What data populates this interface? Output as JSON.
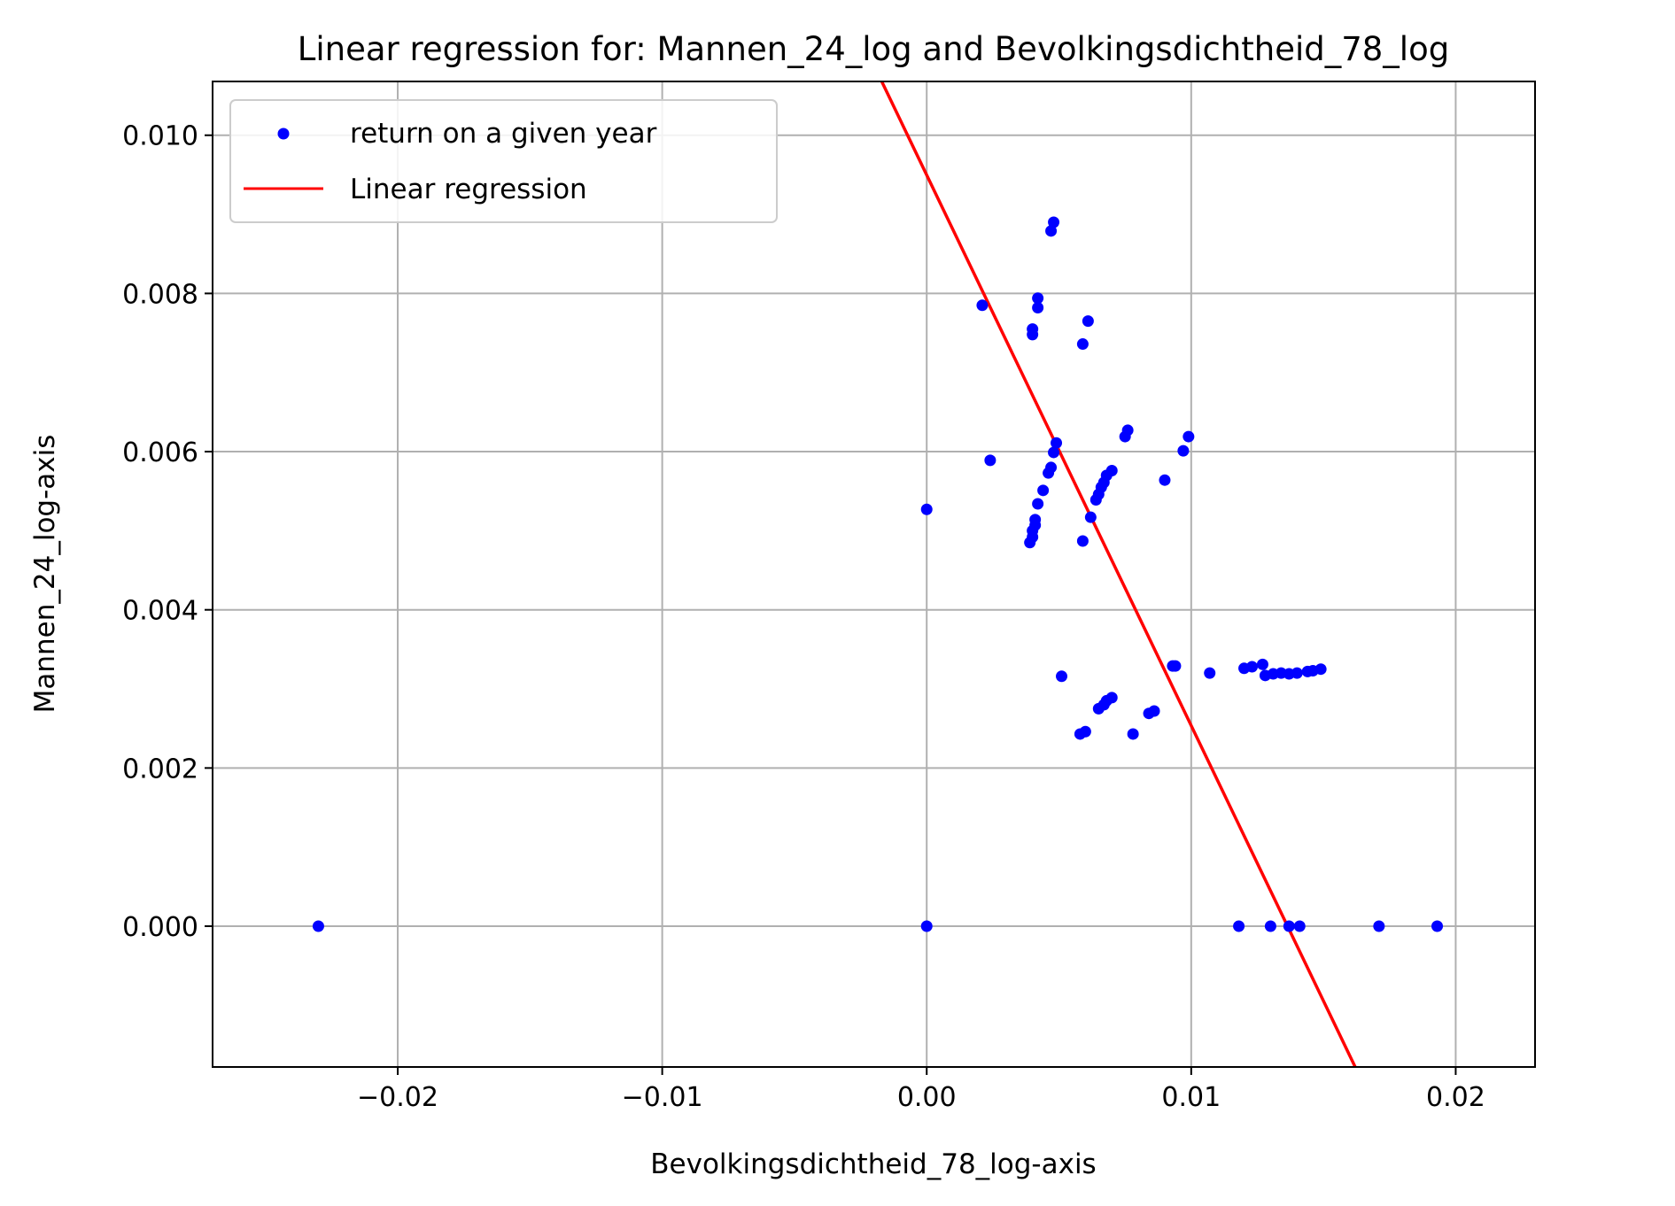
{
  "chart_data": {
    "type": "scatter",
    "title": "Linear regression for: Mannen_24_log and Bevolkingsdichtheid_78_log",
    "xlabel": "Bevolkingsdichtheid_78_log-axis",
    "ylabel": "Mannen_24_log-axis",
    "xlim": [
      -0.027,
      0.023
    ],
    "ylim": [
      -0.00178,
      0.01068
    ],
    "grid": true,
    "legend_position": "upper-left",
    "x_ticks": [
      {
        "value": -0.02,
        "label": "−0.02"
      },
      {
        "value": -0.01,
        "label": "−0.01"
      },
      {
        "value": 0.0,
        "label": "0.00"
      },
      {
        "value": 0.01,
        "label": "0.01"
      },
      {
        "value": 0.02,
        "label": "0.02"
      }
    ],
    "y_ticks": [
      {
        "value": 0.0,
        "label": "0.000"
      },
      {
        "value": 0.002,
        "label": "0.002"
      },
      {
        "value": 0.004,
        "label": "0.004"
      },
      {
        "value": 0.006,
        "label": "0.006"
      },
      {
        "value": 0.008,
        "label": "0.008"
      },
      {
        "value": 0.01,
        "label": "0.010"
      }
    ],
    "series": [
      {
        "name": "return on a given year",
        "kind": "scatter",
        "color": "#0000ff",
        "points": [
          [
            -0.023,
            0.0
          ],
          [
            0.0,
            0.0
          ],
          [
            0.0118,
            0.0
          ],
          [
            0.013,
            0.0
          ],
          [
            0.0137,
            0.0
          ],
          [
            0.0141,
            0.0
          ],
          [
            0.0171,
            0.0
          ],
          [
            0.0193,
            0.0
          ],
          [
            0.0,
            0.00527
          ],
          [
            0.0021,
            0.00785
          ],
          [
            0.0024,
            0.00589
          ],
          [
            0.0039,
            0.00485
          ],
          [
            0.004,
            0.00492
          ],
          [
            0.004,
            0.005
          ],
          [
            0.0041,
            0.00507
          ],
          [
            0.0041,
            0.00514
          ],
          [
            0.0042,
            0.00534
          ],
          [
            0.0044,
            0.00551
          ],
          [
            0.0046,
            0.00573
          ],
          [
            0.0047,
            0.0058
          ],
          [
            0.0048,
            0.00599
          ],
          [
            0.0049,
            0.00611
          ],
          [
            0.004,
            0.00748
          ],
          [
            0.004,
            0.00755
          ],
          [
            0.0042,
            0.00782
          ],
          [
            0.0042,
            0.00794
          ],
          [
            0.0047,
            0.00879
          ],
          [
            0.0048,
            0.0089
          ],
          [
            0.0059,
            0.00736
          ],
          [
            0.0061,
            0.00765
          ],
          [
            0.0062,
            0.00517
          ],
          [
            0.0059,
            0.00487
          ],
          [
            0.0064,
            0.00539
          ],
          [
            0.0065,
            0.00546
          ],
          [
            0.0066,
            0.00555
          ],
          [
            0.0067,
            0.00561
          ],
          [
            0.0068,
            0.0057
          ],
          [
            0.007,
            0.00576
          ],
          [
            0.0075,
            0.00619
          ],
          [
            0.0076,
            0.00627
          ],
          [
            0.009,
            0.00564
          ],
          [
            0.0097,
            0.00601
          ],
          [
            0.0099,
            0.00619
          ],
          [
            0.0051,
            0.00316
          ],
          [
            0.0058,
            0.00243
          ],
          [
            0.006,
            0.00246
          ],
          [
            0.0065,
            0.00275
          ],
          [
            0.0067,
            0.0028
          ],
          [
            0.0068,
            0.00285
          ],
          [
            0.007,
            0.00289
          ],
          [
            0.0078,
            0.00243
          ],
          [
            0.0084,
            0.00269
          ],
          [
            0.0086,
            0.00272
          ],
          [
            0.0093,
            0.00329
          ],
          [
            0.0094,
            0.00329
          ],
          [
            0.0107,
            0.0032
          ],
          [
            0.012,
            0.00326
          ],
          [
            0.0123,
            0.00328
          ],
          [
            0.0127,
            0.00331
          ],
          [
            0.0128,
            0.00317
          ],
          [
            0.0131,
            0.00319
          ],
          [
            0.0134,
            0.0032
          ],
          [
            0.0137,
            0.00319
          ],
          [
            0.014,
            0.0032
          ],
          [
            0.0144,
            0.00322
          ],
          [
            0.0146,
            0.00323
          ],
          [
            0.0149,
            0.00325
          ]
        ]
      },
      {
        "name": "Linear regression",
        "kind": "line",
        "color": "#ff0000",
        "points": [
          [
            -0.0017,
            0.01068
          ],
          [
            0.0162,
            -0.00178
          ]
        ]
      }
    ]
  }
}
